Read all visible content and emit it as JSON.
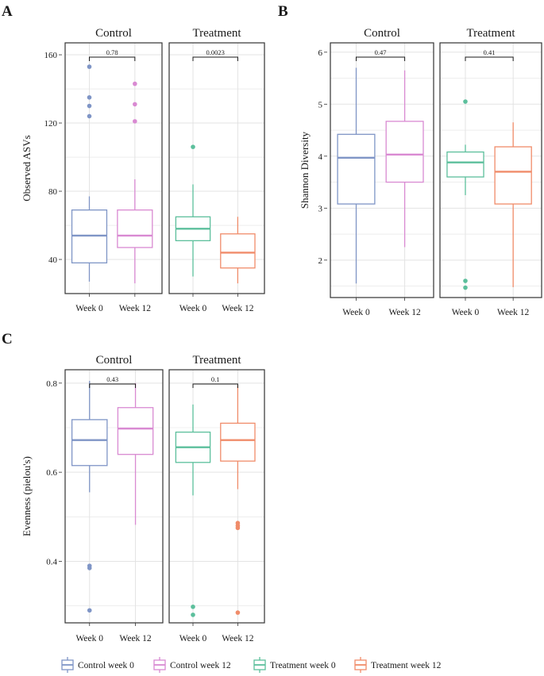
{
  "colors": {
    "control_week_0": "#7f95c6",
    "control_week_12": "#d98ad2",
    "treatment_week_0": "#5cbf9c",
    "treatment_week_12": "#f08c6a",
    "panel_border": "#333333",
    "grid": "#e3e3e3",
    "text": "#1a1a1a"
  },
  "legend": [
    {
      "key": "control_week_0",
      "label": "Control week 0"
    },
    {
      "key": "control_week_12",
      "label": "Control week 12"
    },
    {
      "key": "treatment_week_0",
      "label": "Treatment week 0"
    },
    {
      "key": "treatment_week_12",
      "label": "Treatment week 12"
    }
  ],
  "chart_data": [
    {
      "type": "box",
      "panel_label": "A",
      "ylabel": "Observed ASVs",
      "ylim": [
        20,
        167
      ],
      "yticks": [
        40,
        80,
        120,
        160
      ],
      "ytick_labels": [
        "40",
        "80",
        "120",
        "160"
      ],
      "facets": [
        {
          "title": "Control",
          "p_value": "0.78",
          "categories": [
            "Week 0",
            "Week 12"
          ],
          "boxes": [
            {
              "group": "control_week_0",
              "whisker_low": 27,
              "q1": 38,
              "median": 54,
              "q3": 69,
              "whisker_high": 77,
              "outliers": [
                124,
                130,
                135,
                153
              ]
            },
            {
              "group": "control_week_12",
              "whisker_low": 26,
              "q1": 47,
              "median": 54,
              "q3": 69,
              "whisker_high": 87,
              "outliers": [
                121,
                131,
                143
              ]
            }
          ]
        },
        {
          "title": "Treatment",
          "p_value": "0.0023",
          "categories": [
            "Week 0",
            "Week 12"
          ],
          "boxes": [
            {
              "group": "treatment_week_0",
              "whisker_low": 30,
              "q1": 51,
              "median": 58,
              "q3": 65,
              "whisker_high": 84,
              "outliers": [
                106
              ]
            },
            {
              "group": "treatment_week_12",
              "whisker_low": 26,
              "q1": 35,
              "median": 44,
              "q3": 55,
              "whisker_high": 65,
              "outliers": []
            }
          ]
        }
      ]
    },
    {
      "type": "box",
      "panel_label": "B",
      "ylabel": "Shannon Diversity",
      "ylim": [
        1.28,
        6.18
      ],
      "yticks": [
        2,
        3,
        4,
        5,
        6
      ],
      "ytick_labels": [
        "2",
        "3",
        "4",
        "5",
        "6"
      ],
      "facets": [
        {
          "title": "Control",
          "p_value": "0.47",
          "categories": [
            "Week 0",
            "Week 12"
          ],
          "boxes": [
            {
              "group": "control_week_0",
              "whisker_low": 1.55,
              "q1": 3.08,
              "median": 3.97,
              "q3": 4.42,
              "whisker_high": 5.7,
              "outliers": []
            },
            {
              "group": "control_week_12",
              "whisker_low": 2.25,
              "q1": 3.5,
              "median": 4.03,
              "q3": 4.67,
              "whisker_high": 5.65,
              "outliers": []
            }
          ]
        },
        {
          "title": "Treatment",
          "p_value": "0.41",
          "categories": [
            "Week 0",
            "Week 12"
          ],
          "boxes": [
            {
              "group": "treatment_week_0",
              "whisker_low": 3.25,
              "q1": 3.6,
              "median": 3.88,
              "q3": 4.08,
              "whisker_high": 4.22,
              "outliers": [
                1.47,
                1.6,
                5.05
              ]
            },
            {
              "group": "treatment_week_12",
              "whisker_low": 1.48,
              "q1": 3.08,
              "median": 3.7,
              "q3": 4.18,
              "whisker_high": 4.65,
              "outliers": []
            }
          ]
        }
      ]
    },
    {
      "type": "box",
      "panel_label": "C",
      "ylabel": "Evenness (pielou's)",
      "ylim": [
        0.262,
        0.83
      ],
      "yticks": [
        0.4,
        0.6,
        0.8
      ],
      "ytick_labels": [
        "0.4",
        "0.6",
        "0.8"
      ],
      "facets": [
        {
          "title": "Control",
          "p_value": "0.43",
          "categories": [
            "Week 0",
            "Week 12"
          ],
          "boxes": [
            {
              "group": "control_week_0",
              "whisker_low": 0.555,
              "q1": 0.615,
              "median": 0.672,
              "q3": 0.718,
              "whisker_high": 0.805,
              "outliers": [
                0.29,
                0.385,
                0.39
              ]
            },
            {
              "group": "control_week_12",
              "whisker_low": 0.482,
              "q1": 0.64,
              "median": 0.698,
              "q3": 0.745,
              "whisker_high": 0.8,
              "outliers": []
            }
          ]
        },
        {
          "title": "Treatment",
          "p_value": "0.1",
          "categories": [
            "Week 0",
            "Week 12"
          ],
          "boxes": [
            {
              "group": "treatment_week_0",
              "whisker_low": 0.548,
              "q1": 0.622,
              "median": 0.656,
              "q3": 0.69,
              "whisker_high": 0.752,
              "outliers": [
                0.28,
                0.298
              ]
            },
            {
              "group": "treatment_week_12",
              "whisker_low": 0.562,
              "q1": 0.625,
              "median": 0.672,
              "q3": 0.71,
              "whisker_high": 0.795,
              "outliers": [
                0.285,
                0.475,
                0.48,
                0.486
              ]
            }
          ]
        }
      ]
    }
  ]
}
